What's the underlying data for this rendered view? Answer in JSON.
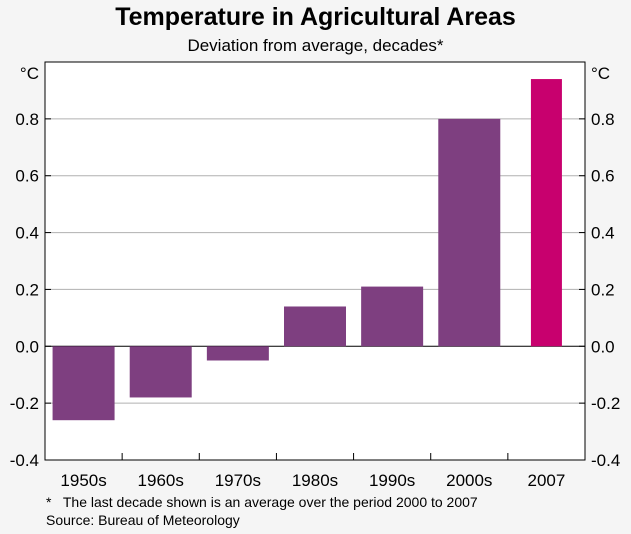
{
  "chart_data": {
    "type": "bar",
    "title": "Temperature in Agricultural Areas",
    "subtitle": "Deviation from average, decades*",
    "ylabel_left": "°C",
    "ylabel_right": "°C",
    "categories": [
      "1950s",
      "1960s",
      "1970s",
      "1980s",
      "1990s",
      "2000s",
      "2007"
    ],
    "values": [
      -0.26,
      -0.18,
      -0.05,
      0.14,
      0.21,
      0.8,
      0.94
    ],
    "ylim": [
      -0.4,
      1.0
    ],
    "yticks": [
      -0.4,
      -0.2,
      0.0,
      0.2,
      0.4,
      0.6,
      0.8
    ],
    "ytick_labels": [
      "-0.4",
      "-0.2",
      "0.0",
      "0.2",
      "0.4",
      "0.6",
      "0.8"
    ],
    "grid": true,
    "colors": {
      "bar": "#7e3f80",
      "highlight": "#c8006e",
      "grid": "#b0b0b0",
      "plot_bg": "#ffffff"
    },
    "highlight_index": 6,
    "footnote": "*   The last decade shown is an average over the period 2000 to 2007",
    "source": "Source: Bureau of Meteorology"
  }
}
